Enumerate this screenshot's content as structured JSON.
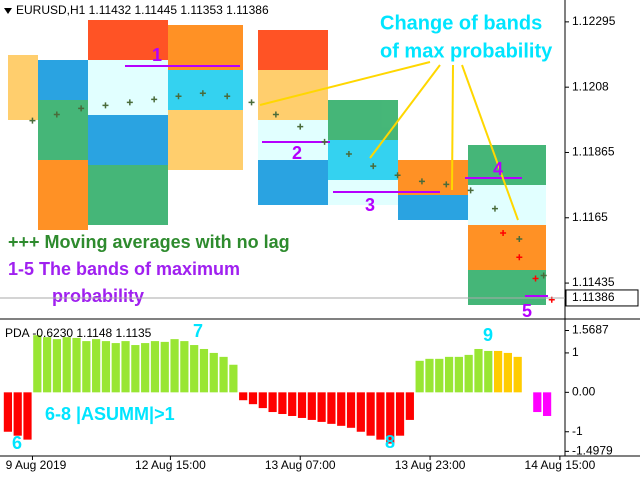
{
  "chart_data": [
    {
      "type": "line",
      "title": "EURUSD,H1  1.11432 1.11445 1.11353 1.11386",
      "xlim": [
        0,
        70
      ],
      "xticks": [
        {
          "value": 4,
          "label": "9 Aug 2019"
        },
        {
          "value": 21,
          "label": "12 Aug 15:00"
        },
        {
          "value": 37,
          "label": "13 Aug 07:00"
        },
        {
          "value": 53,
          "label": "13 Aug 23:00"
        },
        {
          "value": 69,
          "label": "14 Aug 15:00"
        }
      ],
      "ylim": [
        1.1132,
        1.12367
      ],
      "yticks": [
        1.12295,
        1.1208,
        1.11865,
        1.1165,
        1.11435
      ],
      "last_price": 1.11386,
      "series": [
        {
          "color": "#4a6b3a",
          "marker": "+",
          "x": [
            4,
            7,
            10,
            13,
            16,
            19,
            22,
            25,
            28,
            31,
            34,
            37,
            40,
            43,
            46,
            49,
            52,
            55,
            58,
            61,
            64,
            67
          ],
          "values": [
            1.1197,
            1.1199,
            1.1201,
            1.1202,
            1.1203,
            1.1204,
            1.1205,
            1.1206,
            1.1205,
            1.1203,
            1.1199,
            1.1195,
            1.119,
            1.1186,
            1.1182,
            1.1179,
            1.1177,
            1.1176,
            1.1174,
            1.1168,
            1.1158,
            1.1146
          ]
        },
        {
          "color": "#ff0000",
          "marker": "+",
          "x": [
            62,
            64,
            66,
            68
          ],
          "values": [
            1.116,
            1.1152,
            1.1145,
            1.1138
          ]
        }
      ],
      "annotations": [
        "Change of bands",
        "of max probability",
        "+++ Moving averages with no lag",
        "1-5 The bands of maximum",
        "probability",
        "1",
        "2",
        "3",
        "4",
        "5"
      ]
    },
    {
      "type": "bar",
      "title": "PDA -0.6230 1.1148 1.1135",
      "ylim": [
        -1.59,
        1.81
      ],
      "yticks": [
        1.5687,
        1,
        {
          "value": 0,
          "label": "0.00"
        },
        -1,
        -1.4979
      ],
      "values": [
        -1.0,
        -1.1,
        -1.2,
        1.45,
        1.4,
        1.35,
        1.4,
        1.38,
        1.3,
        1.35,
        1.3,
        1.25,
        1.3,
        1.2,
        1.25,
        1.3,
        1.28,
        1.35,
        1.3,
        1.2,
        1.1,
        1.0,
        0.9,
        0.7,
        -0.2,
        -0.3,
        -0.4,
        -0.5,
        -0.55,
        -0.6,
        -0.65,
        -0.7,
        -0.75,
        -0.8,
        -0.85,
        -0.9,
        -1.0,
        -1.1,
        -1.2,
        -1.3,
        -1.1,
        -0.7,
        0.8,
        0.85,
        0.85,
        0.9,
        0.9,
        0.95,
        1.1,
        1.05,
        1.05,
        1.0,
        0.9,
        null,
        -0.5,
        -0.6
      ],
      "colors": [
        "#ff0000",
        "#ff0000",
        "#ff0000",
        "#99e633",
        "#99e633",
        "#99e633",
        "#99e633",
        "#99e633",
        "#99e633",
        "#99e633",
        "#99e633",
        "#99e633",
        "#99e633",
        "#99e633",
        "#99e633",
        "#99e633",
        "#99e633",
        "#99e633",
        "#99e633",
        "#99e633",
        "#99e633",
        "#99e633",
        "#99e633",
        "#99e633",
        "#ff0000",
        "#ff0000",
        "#ff0000",
        "#ff0000",
        "#ff0000",
        "#ff0000",
        "#ff0000",
        "#ff0000",
        "#ff0000",
        "#ff0000",
        "#ff0000",
        "#ff0000",
        "#ff0000",
        "#ff0000",
        "#ff0000",
        "#ff0000",
        "#ff0000",
        "#ff0000",
        "#99e633",
        "#99e633",
        "#99e633",
        "#99e633",
        "#99e633",
        "#99e633",
        "#99e633",
        "#99e633",
        "#ffcc00",
        "#ffcc00",
        "#ffcc00",
        null,
        "#ff00ff",
        "#ff00ff"
      ],
      "annotations": [
        "7",
        "9",
        "6-8 |ASUMM|>1",
        "6",
        "8"
      ]
    }
  ]
}
